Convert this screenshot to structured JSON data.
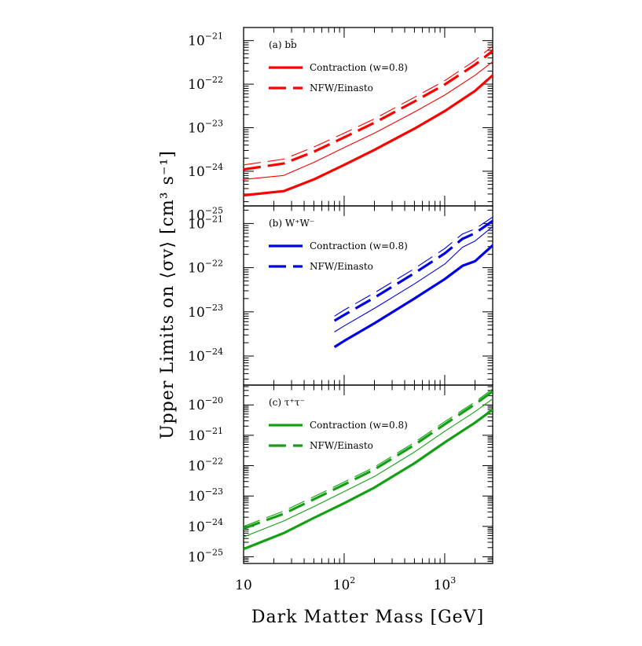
{
  "figure": {
    "xlabel": "Dark Matter Mass [GeV]",
    "ylabel": "Upper Limits on ⟨σv⟩ [cm³ s⁻¹]",
    "x_tick_labels": [
      "10",
      "10^2",
      "10^3"
    ],
    "x_scale": "log"
  },
  "chart_data": [
    {
      "type": "line",
      "panel_label": "(a) bb̄",
      "color": "#ff0000",
      "y_scale": "log",
      "xlim": [
        10,
        3000
      ],
      "ylim": [
        1.6e-25,
        2e-21
      ],
      "y_tick_labels": [
        "10^-25",
        "10^-24",
        "10^-23",
        "10^-22",
        "10^-21"
      ],
      "legend": {
        "placement": "top-left",
        "entries": [
          "Contraction (w=0.8)",
          "NFW/Einasto"
        ]
      },
      "series": [
        {
          "name": "Contraction (w=0.8)",
          "style": "solid-thick",
          "x": [
            10,
            25,
            50,
            100,
            200,
            500,
            1000,
            2000,
            3000
          ],
          "y": [
            2.8e-25,
            3.5e-25,
            6.5e-25,
            1.4e-24,
            3.1e-24,
            9.5e-24,
            2.4e-23,
            7e-23,
            1.6e-22
          ]
        },
        {
          "style": "solid-thin",
          "x": [
            10,
            25,
            50,
            100,
            200,
            500,
            1000,
            2000,
            3000
          ],
          "y": [
            6.5e-25,
            8e-25,
            1.6e-24,
            3.5e-24,
            7.5e-24,
            2.3e-23,
            5.6e-23,
            1.6e-22,
            3.3e-22
          ]
        },
        {
          "name": "NFW/Einasto",
          "style": "dashed-thick",
          "x": [
            10,
            25,
            50,
            100,
            200,
            500,
            1000,
            2000,
            3000
          ],
          "y": [
            1.1e-24,
            1.5e-24,
            2.8e-24,
            6e-24,
            1.3e-23,
            4e-23,
            9.8e-23,
            2.8e-22,
            5.8e-22
          ]
        },
        {
          "style": "dashed-thin",
          "x": [
            10,
            25,
            50,
            100,
            200,
            500,
            1000,
            2000,
            3000
          ],
          "y": [
            1.4e-24,
            1.9e-24,
            3.6e-24,
            7.5e-24,
            1.6e-23,
            5e-23,
            1.2e-22,
            3.5e-22,
            7.5e-22
          ]
        }
      ]
    },
    {
      "type": "line",
      "panel_label": "(b) W⁺W⁻",
      "color": "#0000e6",
      "y_scale": "log",
      "xlim": [
        10,
        3000
      ],
      "ylim": [
        2.2e-25,
        2.5e-21
      ],
      "y_tick_labels": [
        "10^-24",
        "10^-23",
        "10^-22",
        "10^-21"
      ],
      "legend": {
        "placement": "top-left",
        "entries": [
          "Contraction (w=0.8)",
          "NFW/Einasto"
        ]
      },
      "series": [
        {
          "name": "Contraction (w=0.8)",
          "style": "solid-thick",
          "x": [
            80,
            100,
            200,
            500,
            1000,
            1500,
            2000,
            3000
          ],
          "y": [
            1.6e-24,
            2.2e-24,
            5.5e-24,
            2e-23,
            5.5e-23,
            1.1e-22,
            1.4e-22,
            3.2e-22
          ]
        },
        {
          "style": "solid-thin",
          "x": [
            80,
            100,
            200,
            500,
            1000,
            1500,
            2000,
            3000
          ],
          "y": [
            3.5e-24,
            4.8e-24,
            1.2e-23,
            4.3e-23,
            1.2e-22,
            2.9e-22,
            4e-22,
            8.5e-22
          ]
        },
        {
          "name": "NFW/Einasto",
          "style": "dashed-thick",
          "x": [
            80,
            100,
            200,
            500,
            1000,
            1500,
            2000,
            3000
          ],
          "y": [
            6.3e-24,
            8.5e-24,
            2.1e-23,
            7.5e-23,
            2.1e-22,
            4.5e-22,
            6e-22,
            1.15e-21
          ]
        },
        {
          "style": "dashed-thin",
          "x": [
            80,
            100,
            200,
            500,
            1000,
            1500,
            2000,
            3000
          ],
          "y": [
            8e-24,
            1.1e-23,
            2.7e-23,
            9.5e-23,
            2.7e-22,
            5.8e-22,
            7.5e-22,
            1.4e-21
          ]
        }
      ]
    },
    {
      "type": "line",
      "panel_label": "(c) τ⁺τ⁻",
      "color": "#14a014",
      "y_scale": "log",
      "xlim": [
        10,
        3000
      ],
      "ylim": [
        6e-26,
        4.5e-20
      ],
      "y_tick_labels": [
        "10^-25",
        "10^-24",
        "10^-23",
        "10^-22",
        "10^-21",
        "10^-20"
      ],
      "legend": {
        "placement": "top-left",
        "entries": [
          "Contraction (w=0.8)",
          "NFW/Einasto"
        ]
      },
      "series": [
        {
          "name": "Contraction (w=0.8)",
          "style": "solid-thick",
          "x": [
            10,
            25,
            50,
            100,
            200,
            500,
            1000,
            2000,
            3000
          ],
          "y": [
            1.8e-25,
            6e-25,
            1.9e-24,
            5.8e-24,
            1.9e-23,
            1.2e-22,
            5.8e-22,
            2.6e-21,
            7e-21
          ]
        },
        {
          "style": "solid-thin",
          "x": [
            10,
            25,
            50,
            100,
            200,
            500,
            1000,
            2000,
            3000
          ],
          "y": [
            4.5e-25,
            1.5e-24,
            4.5e-24,
            1.4e-23,
            4.4e-23,
            2.8e-22,
            1.35e-21,
            6e-21,
            1.6e-20
          ]
        },
        {
          "name": "NFW/Einasto",
          "style": "dashed-thick",
          "x": [
            10,
            25,
            50,
            100,
            200,
            500,
            1000,
            2000,
            3000
          ],
          "y": [
            8.5e-25,
            2.6e-24,
            7.8e-24,
            2.4e-23,
            7.5e-23,
            4.8e-22,
            2.3e-21,
            1.05e-20,
            2.8e-20
          ]
        },
        {
          "style": "dashed-thin",
          "x": [
            10,
            25,
            50,
            100,
            200,
            500,
            1000,
            2000,
            3000
          ],
          "y": [
            1e-24,
            3.2e-24,
            9.5e-24,
            2.9e-23,
            9e-23,
            5.8e-22,
            2.8e-21,
            1.25e-20,
            3.4e-20
          ]
        }
      ]
    }
  ]
}
